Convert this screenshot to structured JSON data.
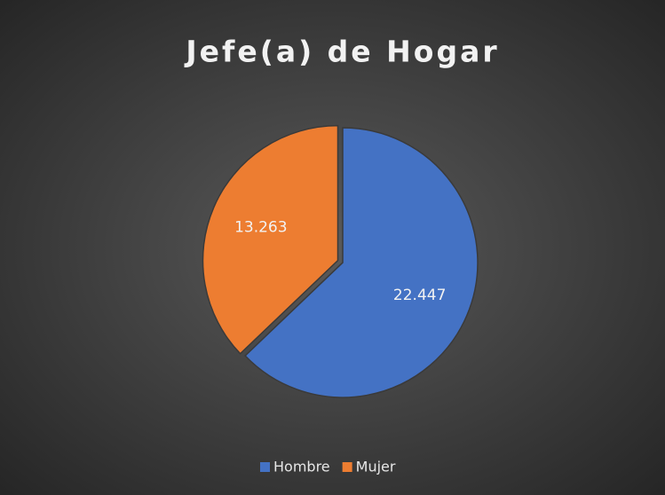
{
  "chart_data": {
    "type": "pie",
    "title": "Jefe(a) de Hogar",
    "categories": [
      "Hombre",
      "Mujer"
    ],
    "values": [
      22447,
      13263
    ],
    "value_labels": [
      "22.447",
      "13.263"
    ],
    "colors": [
      "#4472c4",
      "#ed7d31"
    ],
    "legend": "bottom"
  }
}
